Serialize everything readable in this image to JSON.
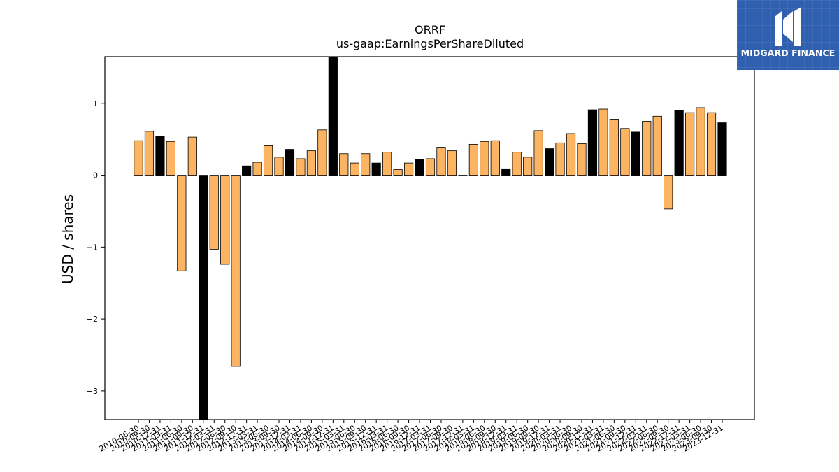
{
  "brand": {
    "name": "MIDGARD FINANCE",
    "accent": "#2f5faf",
    "logo_icon": "midgard-logo-icon"
  },
  "chart_data": {
    "type": "bar",
    "title": "ORRF",
    "subtitle": "us-gaap:EarningsPerShareDiluted",
    "xlabel": "",
    "ylabel": "USD / shares",
    "ylim": [
      -3.4,
      1.65
    ],
    "yticks": [
      1,
      0,
      -1,
      -2,
      -3
    ],
    "ytick_labels": [
      "1",
      "0",
      "−1",
      "−2",
      "−3"
    ],
    "grid": false,
    "legend": "none",
    "colors": {
      "quarterly": "#fdb462",
      "annual": "#000000",
      "edge": "#000000"
    },
    "categories": [
      "2010-06-30",
      "2010-09-30",
      "2010-12-31",
      "2011-03-31",
      "2011-06-30",
      "2011-09-30",
      "2011-12-31",
      "2012-03-31",
      "2012-06-30",
      "2012-09-30",
      "2012-12-31",
      "2013-03-31",
      "2013-06-30",
      "2013-09-30",
      "2013-12-31",
      "2014-03-31",
      "2014-06-30",
      "2014-09-30",
      "2014-12-31",
      "2015-03-31",
      "2015-06-30",
      "2015-09-30",
      "2015-12-31",
      "2016-03-31",
      "2016-06-30",
      "2016-09-30",
      "2016-12-31",
      "2017-03-31",
      "2017-06-30",
      "2017-09-30",
      "2017-12-31",
      "2018-03-31",
      "2018-06-30",
      "2018-09-30",
      "2018-12-31",
      "2019-03-31",
      "2019-06-30",
      "2019-09-30",
      "2019-12-31",
      "2020-03-31",
      "2020-06-30",
      "2020-09-30",
      "2020-12-31",
      "2021-03-31",
      "2021-06-30",
      "2021-09-30",
      "2021-12-31",
      "2022-03-31",
      "2022-06-30",
      "2022-09-30",
      "2022-12-31",
      "2023-03-31",
      "2023-06-30",
      "2023-09-30",
      "2023-12-31"
    ],
    "values": [
      0.48,
      0.61,
      0.54,
      0.47,
      -1.33,
      0.53,
      -3.4,
      -1.03,
      -1.24,
      -2.66,
      0.13,
      0.18,
      0.41,
      0.25,
      0.36,
      0.23,
      0.34,
      0.63,
      1.65,
      0.3,
      0.17,
      0.3,
      0.17,
      0.32,
      0.08,
      0.17,
      0.22,
      0.23,
      0.39,
      0.34,
      0.0,
      0.43,
      0.47,
      0.48,
      0.09,
      0.32,
      0.25,
      0.62,
      0.37,
      0.45,
      0.58,
      0.44,
      0.91,
      0.92,
      0.78,
      0.65,
      0.6,
      0.75,
      0.82,
      -0.47,
      0.9,
      0.87,
      0.94,
      0.87,
      0.73
    ],
    "is_annual": [
      false,
      false,
      true,
      false,
      false,
      false,
      true,
      false,
      false,
      false,
      true,
      false,
      false,
      false,
      true,
      false,
      false,
      false,
      true,
      false,
      false,
      false,
      true,
      false,
      false,
      false,
      true,
      false,
      false,
      false,
      true,
      false,
      false,
      false,
      true,
      false,
      false,
      false,
      true,
      false,
      false,
      false,
      true,
      false,
      false,
      false,
      true,
      false,
      false,
      false,
      true,
      false,
      false,
      false,
      true
    ]
  }
}
